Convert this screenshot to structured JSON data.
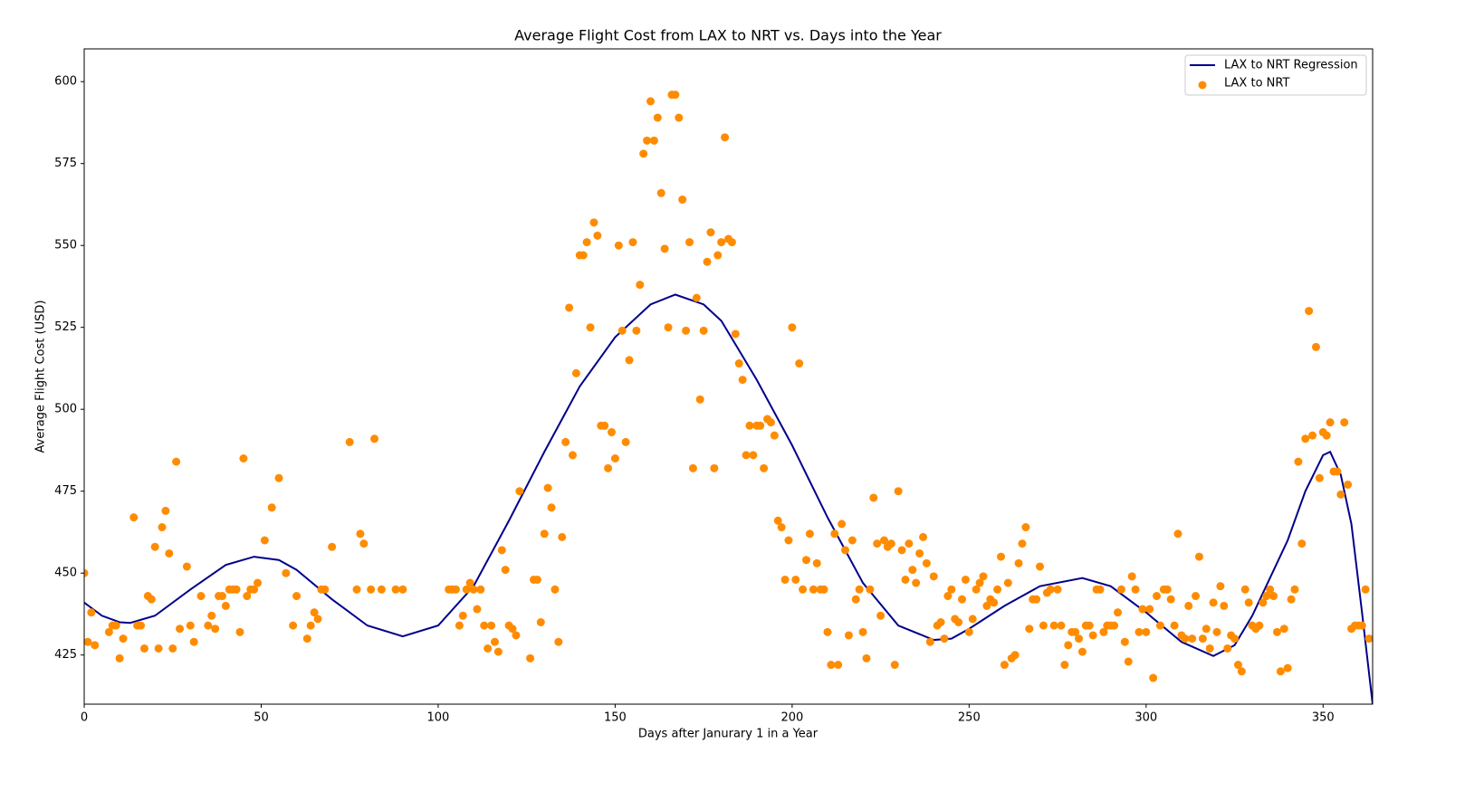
{
  "chart_data": {
    "type": "scatter",
    "title": "Average Flight Cost from LAX to NRT vs. Days into the Year",
    "x_label": "Days after Janurary 1 in a Year",
    "y_label": "Average Flight Cost (USD)",
    "xlim": [
      0,
      364
    ],
    "ylim": [
      410,
      610
    ],
    "xticks": [
      0,
      50,
      100,
      150,
      200,
      250,
      300,
      350
    ],
    "yticks": [
      425,
      450,
      475,
      500,
      525,
      550,
      575,
      600
    ],
    "grid": false,
    "legend": "upper right",
    "series": [
      {
        "name": "LAX to NRT Regression",
        "type": "line",
        "color": "#00008b",
        "x": [
          0,
          5,
          10,
          13,
          20,
          30,
          40,
          48,
          55,
          60,
          70,
          80,
          90,
          100,
          110,
          120,
          130,
          140,
          150,
          160,
          167,
          175,
          180,
          190,
          200,
          210,
          220,
          230,
          240,
          245,
          250,
          260,
          270,
          282,
          290,
          300,
          310,
          319,
          325,
          330,
          340,
          345,
          350,
          352,
          355,
          358,
          361,
          364
        ],
        "values": [
          441,
          437,
          435,
          434.8,
          437,
          445,
          452.5,
          455,
          454,
          451,
          442,
          434,
          430.7,
          434,
          446,
          466,
          487,
          507,
          522,
          532,
          535,
          532,
          527,
          509,
          489,
          467,
          447,
          434,
          429.6,
          430,
          433,
          440,
          446,
          448.5,
          446,
          438,
          429,
          424.7,
          428,
          437,
          460,
          475,
          486,
          487,
          480,
          465,
          438,
          410
        ]
      },
      {
        "name": "LAX to NRT",
        "type": "scatter",
        "color": "#ff8c00",
        "x": [
          0,
          1,
          2,
          3,
          7,
          8,
          9,
          10,
          11,
          14,
          15,
          16,
          17,
          18,
          19,
          20,
          21,
          22,
          23,
          24,
          25,
          26,
          27,
          29,
          30,
          31,
          33,
          35,
          36,
          37,
          38,
          39,
          40,
          41,
          42,
          43,
          44,
          45,
          46,
          47,
          48,
          49,
          51,
          53,
          55,
          57,
          59,
          60,
          63,
          64,
          65,
          66,
          67,
          68,
          70,
          75,
          77,
          78,
          79,
          81,
          82,
          84,
          88,
          90,
          103,
          104,
          105,
          106,
          107,
          108,
          109,
          110,
          111,
          112,
          113,
          114,
          115,
          116,
          117,
          118,
          119,
          120,
          121,
          122,
          123,
          126,
          127,
          128,
          129,
          130,
          131,
          132,
          133,
          134,
          135,
          136,
          137,
          138,
          139,
          140,
          141,
          142,
          143,
          144,
          145,
          146,
          147,
          148,
          149,
          150,
          151,
          152,
          153,
          154,
          155,
          156,
          157,
          158,
          159,
          160,
          161,
          162,
          163,
          164,
          165,
          166,
          167,
          168,
          169,
          170,
          171,
          172,
          173,
          174,
          175,
          176,
          177,
          178,
          179,
          180,
          181,
          182,
          183,
          184,
          185,
          186,
          187,
          188,
          189,
          190,
          191,
          192,
          193,
          194,
          195,
          196,
          197,
          198,
          199,
          200,
          201,
          202,
          203,
          204,
          205,
          206,
          207,
          208,
          209,
          210,
          211,
          212,
          213,
          214,
          215,
          216,
          217,
          218,
          219,
          220,
          221,
          222,
          223,
          224,
          225,
          226,
          227,
          228,
          229,
          230,
          231,
          232,
          233,
          234,
          235,
          236,
          237,
          238,
          239,
          240,
          241,
          242,
          243,
          244,
          245,
          246,
          247,
          248,
          249,
          250,
          251,
          252,
          253,
          254,
          255,
          256,
          257,
          258,
          259,
          260,
          261,
          262,
          263,
          264,
          265,
          266,
          267,
          268,
          269,
          270,
          271,
          272,
          273,
          274,
          275,
          276,
          277,
          278,
          279,
          280,
          281,
          282,
          283,
          284,
          285,
          286,
          287,
          288,
          289,
          290,
          291,
          292,
          293,
          294,
          295,
          296,
          297,
          298,
          299,
          300,
          301,
          302,
          303,
          304,
          305,
          306,
          307,
          308,
          309,
          310,
          311,
          312,
          313,
          314,
          315,
          316,
          317,
          318,
          319,
          320,
          321,
          322,
          323,
          324,
          325,
          326,
          327,
          328,
          329,
          330,
          331,
          332,
          333,
          334,
          335,
          336,
          337,
          338,
          339,
          340,
          341,
          342,
          343,
          344,
          345,
          346,
          347,
          348,
          349,
          350,
          351,
          352,
          353,
          354,
          355,
          356,
          357,
          358,
          359,
          360,
          361,
          362,
          363
        ],
        "values": [
          450,
          429,
          438,
          428,
          432,
          434,
          434,
          424,
          430,
          467,
          434,
          434,
          427,
          443,
          442,
          458,
          427,
          464,
          469,
          456,
          427,
          484,
          433,
          452,
          434,
          429,
          443,
          434,
          437,
          433,
          443,
          443,
          440,
          445,
          445,
          445,
          432,
          485,
          443,
          445,
          445,
          447,
          460,
          470,
          479,
          450,
          434,
          443,
          430,
          434,
          438,
          436,
          445,
          445,
          458,
          490,
          445,
          462,
          459,
          445,
          491,
          445,
          445,
          445,
          445,
          445,
          445,
          434,
          437,
          445,
          447,
          445,
          439,
          445,
          434,
          427,
          434,
          429,
          426,
          457,
          451,
          434,
          433,
          431,
          475,
          424,
          448,
          448,
          435,
          462,
          476,
          470,
          445,
          429,
          461,
          490,
          531,
          486,
          511,
          547,
          547,
          551,
          525,
          557,
          553,
          495,
          495,
          482,
          493,
          485,
          550,
          524,
          490,
          515,
          551,
          524,
          538,
          578,
          582,
          594,
          582,
          589,
          566,
          549,
          525,
          596,
          596,
          589,
          564,
          524,
          551,
          482,
          534,
          503,
          524,
          545,
          554,
          482,
          547,
          551,
          583,
          552,
          551,
          523,
          514,
          509,
          486,
          495,
          486,
          495,
          495,
          482,
          497,
          496,
          492,
          466,
          464,
          448,
          460,
          525,
          448,
          514,
          445,
          454,
          462,
          445,
          453,
          445,
          445,
          432,
          422,
          462,
          422,
          465,
          457,
          431,
          460,
          442,
          445,
          432,
          424,
          445,
          473,
          459,
          437,
          460,
          458,
          459,
          422,
          475,
          457,
          448,
          459,
          451,
          447,
          456,
          461,
          453,
          429,
          449,
          434,
          435,
          430,
          443,
          445,
          436,
          435,
          442,
          448,
          432,
          436,
          445,
          447,
          449,
          440,
          442,
          441,
          445,
          455,
          422,
          447,
          424,
          425,
          453,
          459,
          464,
          433,
          442,
          442,
          452,
          434,
          444,
          445,
          434,
          445,
          434,
          422,
          428,
          432,
          432,
          430,
          426,
          434,
          434,
          431,
          445,
          445,
          432,
          434,
          434,
          434,
          438,
          445,
          429,
          423,
          449,
          445,
          432,
          439,
          432,
          439,
          418,
          443,
          434,
          445,
          445,
          442,
          434,
          462,
          431,
          430,
          440,
          430,
          443,
          455,
          430,
          433,
          427,
          441,
          432,
          446,
          440,
          427,
          431,
          430,
          422,
          420,
          445,
          441,
          434,
          433,
          434,
          441,
          443,
          445,
          443,
          432,
          420,
          433,
          421,
          442,
          445,
          484,
          459,
          491,
          530,
          492,
          519,
          479,
          493,
          492,
          496,
          481,
          481,
          474,
          496,
          477,
          433,
          434,
          434,
          434,
          445,
          430
        ]
      }
    ]
  }
}
